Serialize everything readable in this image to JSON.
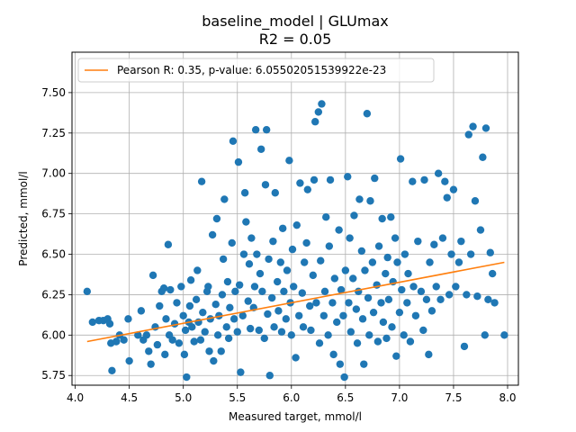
{
  "chart_data": {
    "type": "scatter",
    "title": "baseline_model | GLUmax",
    "subtitle": "R2 = 0.05",
    "xlabel": "Measured target, mmol/l",
    "ylabel": "Predicted, mmol/l",
    "xlim": [
      3.97,
      8.1
    ],
    "ylim": [
      5.69,
      7.75
    ],
    "xticks": [
      "4.0",
      "4.5",
      "5.0",
      "5.5",
      "6.0",
      "6.5",
      "7.0",
      "7.5",
      "8.0"
    ],
    "yticks": [
      "5.75",
      "6.00",
      "6.25",
      "6.50",
      "6.75",
      "7.00",
      "7.25",
      "7.50"
    ],
    "grid": true,
    "legend_position": "top-left",
    "series": [
      {
        "kind": "scatter",
        "color": "#1f77b4",
        "points": [
          [
            4.11,
            6.27
          ],
          [
            4.16,
            6.08
          ],
          [
            4.22,
            6.09
          ],
          [
            4.26,
            6.09
          ],
          [
            4.3,
            6.1
          ],
          [
            4.32,
            6.07
          ],
          [
            4.33,
            5.95
          ],
          [
            4.34,
            5.78
          ],
          [
            4.38,
            5.96
          ],
          [
            4.41,
            6.0
          ],
          [
            4.45,
            5.97
          ],
          [
            4.49,
            6.1
          ],
          [
            4.5,
            5.84
          ],
          [
            4.58,
            6.0
          ],
          [
            4.61,
            6.15
          ],
          [
            4.63,
            5.97
          ],
          [
            4.66,
            6.0
          ],
          [
            4.68,
            5.9
          ],
          [
            4.7,
            5.82
          ],
          [
            4.72,
            6.37
          ],
          [
            4.74,
            6.05
          ],
          [
            4.76,
            5.94
          ],
          [
            4.78,
            6.18
          ],
          [
            4.8,
            6.27
          ],
          [
            4.82,
            6.29
          ],
          [
            4.83,
            5.88
          ],
          [
            4.84,
            6.1
          ],
          [
            4.86,
            6.56
          ],
          [
            4.87,
            6.0
          ],
          [
            4.88,
            6.28
          ],
          [
            4.9,
            5.97
          ],
          [
            4.92,
            6.07
          ],
          [
            4.94,
            6.2
          ],
          [
            4.96,
            5.95
          ],
          [
            4.98,
            6.3
          ],
          [
            5.0,
            6.12
          ],
          [
            5.01,
            5.88
          ],
          [
            5.02,
            6.03
          ],
          [
            5.03,
            5.74
          ],
          [
            5.05,
            6.08
          ],
          [
            5.06,
            6.18
          ],
          [
            5.07,
            6.34
          ],
          [
            5.08,
            6.05
          ],
          [
            5.1,
            5.96
          ],
          [
            5.12,
            6.22
          ],
          [
            5.13,
            6.4
          ],
          [
            5.14,
            6.08
          ],
          [
            5.16,
            5.97
          ],
          [
            5.17,
            6.95
          ],
          [
            5.18,
            6.14
          ],
          [
            5.2,
            6.02
          ],
          [
            5.22,
            6.27
          ],
          [
            5.23,
            6.3
          ],
          [
            5.24,
            5.9
          ],
          [
            5.25,
            6.1
          ],
          [
            5.27,
            6.62
          ],
          [
            5.28,
            5.84
          ],
          [
            5.3,
            6.19
          ],
          [
            5.31,
            6.72
          ],
          [
            5.32,
            6.0
          ],
          [
            5.33,
            6.12
          ],
          [
            5.35,
            5.9
          ],
          [
            5.36,
            6.25
          ],
          [
            5.37,
            6.47
          ],
          [
            5.38,
            6.84
          ],
          [
            5.4,
            6.05
          ],
          [
            5.41,
            6.33
          ],
          [
            5.42,
            5.98
          ],
          [
            5.43,
            6.17
          ],
          [
            5.45,
            6.57
          ],
          [
            5.46,
            7.2
          ],
          [
            5.47,
            6.1
          ],
          [
            5.48,
            6.27
          ],
          [
            5.5,
            6.02
          ],
          [
            5.51,
            7.07
          ],
          [
            5.52,
            6.31
          ],
          [
            5.53,
            5.77
          ],
          [
            5.55,
            6.12
          ],
          [
            5.56,
            6.5
          ],
          [
            5.57,
            6.88
          ],
          [
            5.58,
            6.7
          ],
          [
            5.6,
            6.21
          ],
          [
            5.61,
            6.44
          ],
          [
            5.62,
            6.04
          ],
          [
            5.63,
            6.6
          ],
          [
            5.65,
            6.17
          ],
          [
            5.66,
            6.3
          ],
          [
            5.67,
            7.27
          ],
          [
            5.68,
            6.5
          ],
          [
            5.7,
            6.03
          ],
          [
            5.71,
            6.38
          ],
          [
            5.72,
            7.15
          ],
          [
            5.73,
            6.27
          ],
          [
            5.75,
            5.98
          ],
          [
            5.76,
            6.93
          ],
          [
            5.77,
            7.27
          ],
          [
            5.78,
            6.13
          ],
          [
            5.79,
            6.47
          ],
          [
            5.8,
            5.75
          ],
          [
            5.82,
            6.23
          ],
          [
            5.83,
            6.58
          ],
          [
            5.84,
            6.05
          ],
          [
            5.85,
            6.88
          ],
          [
            5.87,
            6.33
          ],
          [
            5.88,
            6.15
          ],
          [
            5.9,
            6.45
          ],
          [
            5.91,
            6.02
          ],
          [
            5.92,
            6.66
          ],
          [
            5.93,
            6.27
          ],
          [
            5.95,
            6.1
          ],
          [
            5.96,
            6.4
          ],
          [
            5.98,
            7.08
          ],
          [
            5.99,
            6.2
          ],
          [
            6.0,
            6.0
          ],
          [
            6.01,
            6.53
          ],
          [
            6.02,
            6.3
          ],
          [
            6.04,
            5.86
          ],
          [
            6.05,
            6.68
          ],
          [
            6.07,
            6.12
          ],
          [
            6.08,
            6.94
          ],
          [
            6.1,
            6.26
          ],
          [
            6.11,
            6.05
          ],
          [
            6.12,
            6.45
          ],
          [
            6.14,
            6.57
          ],
          [
            6.15,
            6.9
          ],
          [
            6.17,
            6.18
          ],
          [
            6.18,
            6.03
          ],
          [
            6.2,
            6.37
          ],
          [
            6.21,
            6.96
          ],
          [
            6.22,
            7.32
          ],
          [
            6.23,
            6.2
          ],
          [
            6.25,
            7.38
          ],
          [
            6.26,
            5.95
          ],
          [
            6.27,
            6.46
          ],
          [
            6.28,
            7.43
          ],
          [
            6.3,
            6.12
          ],
          [
            6.31,
            6.27
          ],
          [
            6.32,
            6.73
          ],
          [
            6.34,
            6.0
          ],
          [
            6.35,
            6.55
          ],
          [
            6.36,
            6.96
          ],
          [
            6.38,
            6.2
          ],
          [
            6.39,
            5.88
          ],
          [
            6.4,
            6.35
          ],
          [
            6.42,
            6.08
          ],
          [
            6.44,
            6.65
          ],
          [
            6.45,
            5.82
          ],
          [
            6.46,
            6.28
          ],
          [
            6.48,
            6.12
          ],
          [
            6.49,
            5.74
          ],
          [
            6.5,
            6.4
          ],
          [
            6.52,
            6.98
          ],
          [
            6.53,
            6.2
          ],
          [
            6.54,
            6.6
          ],
          [
            6.55,
            6.02
          ],
          [
            6.57,
            6.35
          ],
          [
            6.58,
            6.74
          ],
          [
            6.6,
            6.16
          ],
          [
            6.61,
            5.95
          ],
          [
            6.62,
            6.27
          ],
          [
            6.63,
            6.84
          ],
          [
            6.65,
            6.52
          ],
          [
            6.66,
            6.1
          ],
          [
            6.67,
            5.82
          ],
          [
            6.68,
            6.4
          ],
          [
            6.7,
            7.37
          ],
          [
            6.71,
            6.23
          ],
          [
            6.72,
            6.0
          ],
          [
            6.73,
            6.83
          ],
          [
            6.75,
            6.45
          ],
          [
            6.76,
            6.14
          ],
          [
            6.77,
            6.97
          ],
          [
            6.79,
            6.31
          ],
          [
            6.8,
            5.96
          ],
          [
            6.81,
            6.55
          ],
          [
            6.83,
            6.2
          ],
          [
            6.84,
            6.72
          ],
          [
            6.85,
            6.08
          ],
          [
            6.87,
            6.38
          ],
          [
            6.88,
            5.98
          ],
          [
            6.89,
            6.48
          ],
          [
            6.9,
            6.22
          ],
          [
            6.92,
            6.73
          ],
          [
            6.93,
            6.05
          ],
          [
            6.94,
            6.33
          ],
          [
            6.96,
            6.6
          ],
          [
            6.97,
            5.87
          ],
          [
            6.98,
            6.45
          ],
          [
            7.0,
            6.14
          ],
          [
            7.01,
            7.09
          ],
          [
            7.02,
            6.28
          ],
          [
            7.04,
            6.0
          ],
          [
            7.05,
            6.5
          ],
          [
            7.07,
            6.2
          ],
          [
            7.08,
            6.38
          ],
          [
            7.1,
            5.96
          ],
          [
            7.12,
            6.95
          ],
          [
            7.13,
            6.3
          ],
          [
            7.15,
            6.12
          ],
          [
            7.17,
            6.58
          ],
          [
            7.2,
            6.27
          ],
          [
            7.22,
            6.03
          ],
          [
            7.23,
            6.96
          ],
          [
            7.25,
            6.22
          ],
          [
            7.27,
            5.88
          ],
          [
            7.28,
            6.45
          ],
          [
            7.3,
            6.15
          ],
          [
            7.32,
            6.56
          ],
          [
            7.34,
            6.3
          ],
          [
            7.36,
            7.0
          ],
          [
            7.38,
            6.22
          ],
          [
            7.4,
            6.6
          ],
          [
            7.42,
            6.95
          ],
          [
            7.44,
            6.85
          ],
          [
            7.46,
            6.25
          ],
          [
            7.48,
            6.5
          ],
          [
            7.5,
            6.9
          ],
          [
            7.52,
            6.3
          ],
          [
            7.55,
            6.45
          ],
          [
            7.57,
            6.58
          ],
          [
            7.6,
            5.93
          ],
          [
            7.62,
            6.25
          ],
          [
            7.64,
            7.24
          ],
          [
            7.66,
            6.5
          ],
          [
            7.68,
            7.29
          ],
          [
            7.7,
            6.83
          ],
          [
            7.72,
            6.24
          ],
          [
            7.75,
            6.65
          ],
          [
            7.77,
            7.1
          ],
          [
            7.79,
            6.0
          ],
          [
            7.8,
            7.28
          ],
          [
            7.82,
            6.22
          ],
          [
            7.84,
            6.51
          ],
          [
            7.86,
            6.38
          ],
          [
            7.88,
            6.2
          ],
          [
            7.97,
            6.0
          ]
        ]
      },
      {
        "kind": "line",
        "name": "Pearson R: 0.35, p-value: 6.05502051539922e-23",
        "color": "#ff7f0e",
        "points": [
          [
            4.11,
            5.96
          ],
          [
            7.97,
            6.45
          ]
        ]
      }
    ]
  }
}
